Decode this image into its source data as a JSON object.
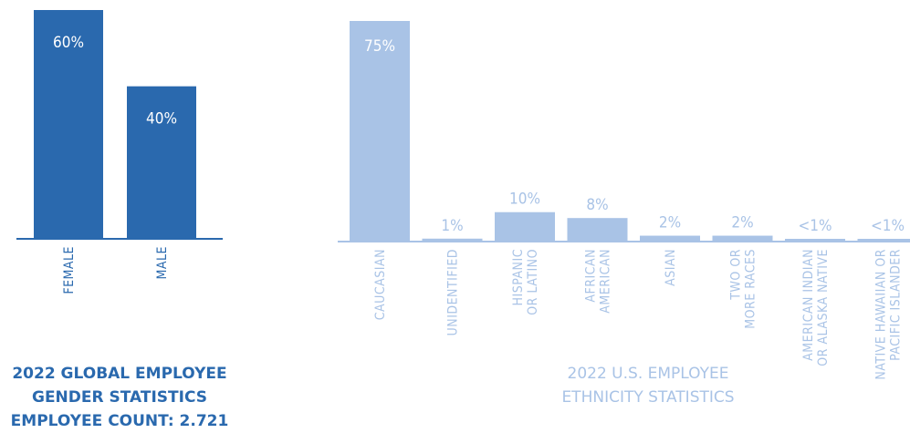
{
  "colors": {
    "gender_bar": "#2a69ae",
    "ethnicity_bar": "#a9c3e6",
    "gender_text": "#2a69ae",
    "ethnicity_text": "#a9c3e6"
  },
  "gender_caption": [
    "2022 GLOBAL EMPLOYEE",
    "GENDER STATISTICS",
    "EMPLOYEE COUNT: 2.721"
  ],
  "ethnicity_caption": [
    "2022 U.S. EMPLOYEE",
    "ETHNICITY STATISTICS"
  ],
  "chart_data": [
    {
      "type": "bar",
      "title": "2022 GLOBAL EMPLOYEE GENDER STATISTICS",
      "categories": [
        "FEMALE",
        "MALE"
      ],
      "values": [
        60,
        40
      ],
      "value_labels": [
        "60%",
        "40%"
      ],
      "ylim": [
        0,
        60
      ],
      "grid": false,
      "legend": "none"
    },
    {
      "type": "bar",
      "title": "2022 U.S. EMPLOYEE ETHNICITY STATISTICS",
      "categories": [
        [
          "CAUCASIAN"
        ],
        [
          "UNIDENTIFIED"
        ],
        [
          "HISPANIC",
          "OR LATINO"
        ],
        [
          "AFRICAN",
          "AMERICAN"
        ],
        [
          "ASIAN"
        ],
        [
          "TWO OR",
          "MORE RACES"
        ],
        [
          "AMERICAN INDIAN",
          "OR ALASKA NATIVE"
        ],
        [
          "NATIVE HAWAIIAN OR",
          "PACIFIC ISLANDER"
        ]
      ],
      "values": [
        75,
        1,
        10,
        8,
        2,
        2,
        0.5,
        0.5
      ],
      "value_labels": [
        "75%",
        "1%",
        "10%",
        "8%",
        "2%",
        "2%",
        "<1%",
        "<1%"
      ],
      "ylim": [
        0,
        75
      ],
      "grid": false,
      "legend": "none"
    }
  ]
}
